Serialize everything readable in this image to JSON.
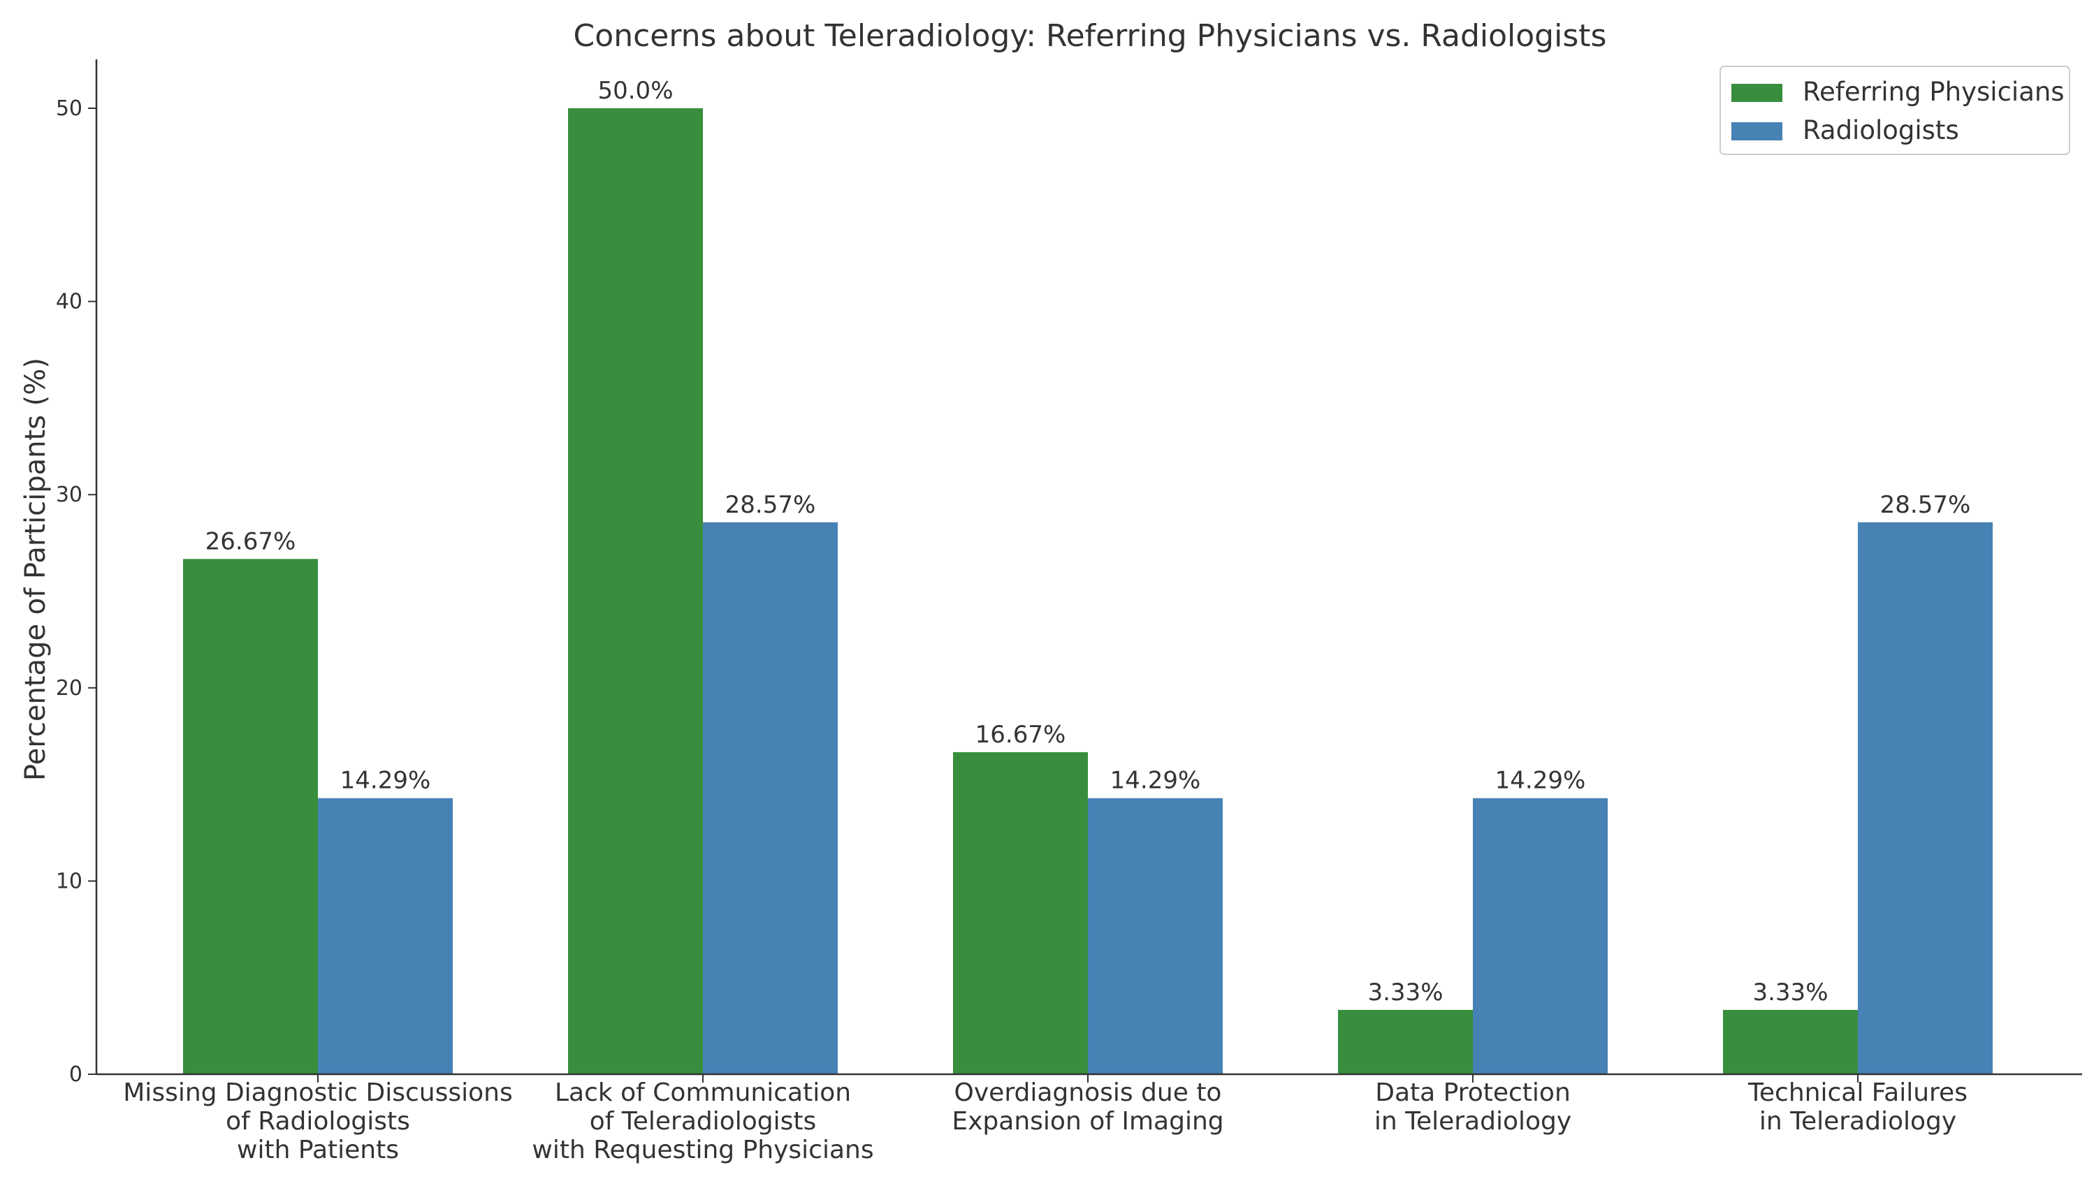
{
  "chart_data": {
    "type": "bar",
    "title": "Concerns about Teleradiology: Referring Physicians vs. Radiologists",
    "xlabel": "",
    "ylabel": "Percentage of Participants (%)",
    "ylim": [
      0,
      52.5
    ],
    "yticks": [
      "0",
      "10",
      "20",
      "30",
      "40",
      "50"
    ],
    "categories": [
      [
        "Missing Diagnostic Discussions",
        "of Radiologists",
        "with Patients"
      ],
      [
        "Lack of Communication",
        "of Teleradiologists",
        "with Requesting Physicians"
      ],
      [
        "Overdiagnosis due to",
        "Expansion of Imaging"
      ],
      [
        "Data Protection",
        "in Teleradiology"
      ],
      [
        "Technical Failures",
        "in Teleradiology"
      ]
    ],
    "series": [
      {
        "name": "Referring Physicians",
        "color": "#388e3c",
        "values": [
          26.67,
          50.0,
          16.67,
          3.33,
          3.33
        ],
        "labels": [
          "26.67%",
          "50.0%",
          "16.67%",
          "3.33%",
          "3.33%"
        ]
      },
      {
        "name": "Radiologists",
        "color": "#4682b4",
        "values": [
          14.29,
          28.57,
          14.29,
          14.29,
          28.57
        ],
        "labels": [
          "14.29%",
          "28.57%",
          "14.29%",
          "14.29%",
          "28.57%"
        ]
      }
    ],
    "legend_position": "top-right",
    "grid": false
  }
}
